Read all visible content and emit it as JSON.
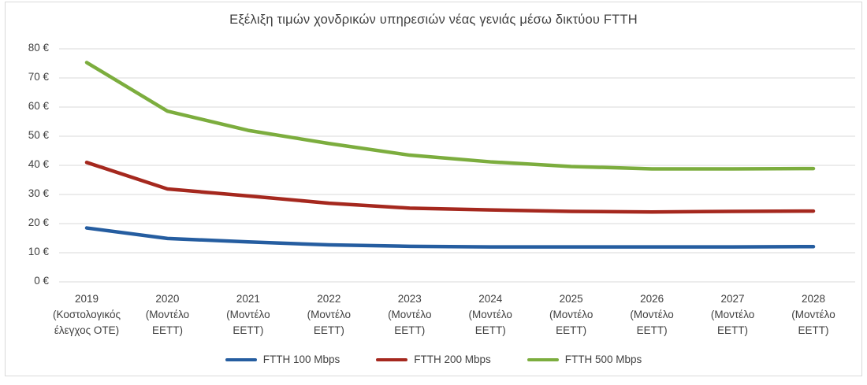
{
  "chart_data": {
    "type": "line",
    "title": "Εξέλιξη τιμών χονδρικών υπηρεσιών νέας γενιάς μέσω δικτύου FTTH",
    "categories": [
      "2019 (Κοστολογικός έλεγχος ΟΤΕ)",
      "2020 (Μοντέλο ΕΕΤΤ)",
      "2021 (Μοντέλο ΕΕΤΤ)",
      "2022 (Μοντέλο ΕΕΤΤ)",
      "2023 (Μοντέλο ΕΕΤΤ)",
      "2024 (Μοντέλο ΕΕΤΤ)",
      "2025 (Μοντέλο ΕΕΤΤ)",
      "2026 (Μοντέλο ΕΕΤΤ)",
      "2027 (Μοντέλο ΕΕΤΤ)",
      "2028 (Μοντέλο ΕΕΤΤ)"
    ],
    "category_display": [
      [
        "2019",
        "(Κοστολογικός",
        "έλεγχος ΟΤΕ)"
      ],
      [
        "2020",
        "(Μοντέλο",
        "ΕΕΤΤ)"
      ],
      [
        "2021",
        "(Μοντέλο",
        "ΕΕΤΤ)"
      ],
      [
        "2022",
        "(Μοντέλο",
        "ΕΕΤΤ)"
      ],
      [
        "2023",
        "(Μοντέλο",
        "ΕΕΤΤ)"
      ],
      [
        "2024",
        "(Μοντέλο",
        "ΕΕΤΤ)"
      ],
      [
        "2025",
        "(Μοντέλο",
        "ΕΕΤΤ)"
      ],
      [
        "2026",
        "(Μοντέλο",
        "ΕΕΤΤ)"
      ],
      [
        "2027",
        "(Μοντέλο",
        "ΕΕΤΤ)"
      ],
      [
        "2028",
        "(Μοντέλο",
        "ΕΕΤΤ)"
      ]
    ],
    "series": [
      {
        "name": "FTTH 100 Mbps",
        "color": "#255DA0",
        "values": [
          18.5,
          14.9,
          13.7,
          12.7,
          12.2,
          12.0,
          12.0,
          12.0,
          12.0,
          12.1
        ]
      },
      {
        "name": "FTTH 200 Mbps",
        "color": "#A5281E",
        "values": [
          41.0,
          31.9,
          29.5,
          27.0,
          25.3,
          24.7,
          24.2,
          24.0,
          24.2,
          24.3
        ]
      },
      {
        "name": "FTTH 500 Mbps",
        "color": "#7CAD3E",
        "values": [
          75.3,
          58.6,
          52.0,
          47.5,
          43.5,
          41.2,
          39.6,
          38.8,
          38.8,
          38.9
        ]
      }
    ],
    "ylim": [
      0,
      80
    ],
    "y_ticks": [
      {
        "value": 0,
        "label": "0 €"
      },
      {
        "value": 10,
        "label": "10 €"
      },
      {
        "value": 20,
        "label": "20 €"
      },
      {
        "value": 30,
        "label": "30 €"
      },
      {
        "value": 40,
        "label": "40 €"
      },
      {
        "value": 50,
        "label": "50 €"
      },
      {
        "value": 60,
        "label": "60 €"
      },
      {
        "value": 70,
        "label": "70 €"
      },
      {
        "value": 80,
        "label": "80 €"
      }
    ],
    "xlabel": "",
    "ylabel": "",
    "grid": "horizontal",
    "legend_position": "bottom"
  },
  "colors": {
    "grid": "#D9D9D9",
    "frame": "#D9D9D9",
    "text": "#404040",
    "title_text": "#3F3F3F",
    "background": "#FFFFFF"
  }
}
